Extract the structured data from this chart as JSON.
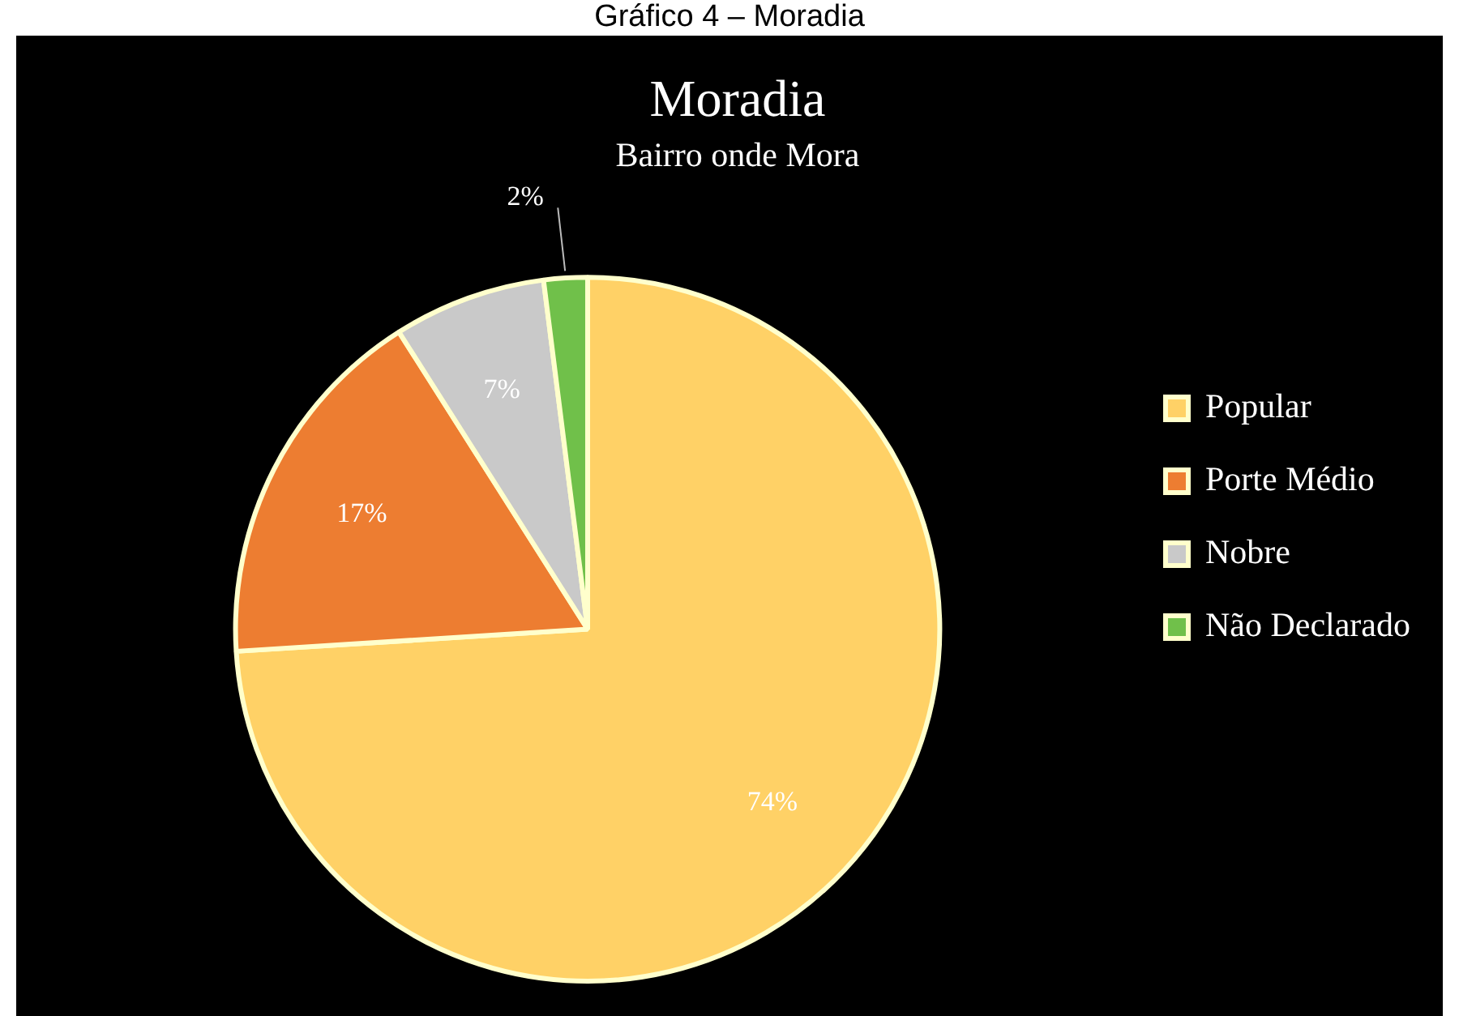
{
  "chart_data": {
    "type": "pie",
    "title": "Moradia",
    "subtitle": "Bairro onde Mora",
    "annotations": [
      "Gráfico 4 – Moradia"
    ],
    "categories": [
      "Popular",
      "Porte Médio",
      "Nobre",
      "Não Declarado"
    ],
    "values": [
      74,
      17,
      7,
      2
    ],
    "colors": [
      "#ffd166",
      "#ed7d31",
      "#c9c9c9",
      "#70c04a"
    ],
    "value_labels": [
      "74%",
      "17%",
      "7%",
      "2%"
    ],
    "legend": "right"
  }
}
